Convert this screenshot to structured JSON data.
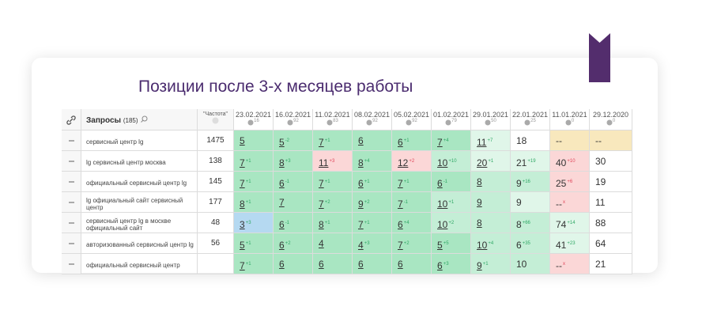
{
  "title": "Позиции после 3-х месяцев работы",
  "table": {
    "query_header": "Запросы",
    "query_count": "(185)",
    "freq_header": "\"Частота\"",
    "columns": [
      {
        "date": "23.02.2021",
        "n": "16"
      },
      {
        "date": "16.02.2021",
        "n": "92"
      },
      {
        "date": "11.02.2021",
        "n": "83"
      },
      {
        "date": "08.02.2021",
        "n": "92"
      },
      {
        "date": "05.02.2021",
        "n": "92"
      },
      {
        "date": "01.02.2021",
        "n": "79"
      },
      {
        "date": "29.01.2021",
        "n": "50"
      },
      {
        "date": "22.01.2021",
        "n": "25"
      },
      {
        "date": "11.01.2021",
        "n": "0"
      },
      {
        "date": "29.12.2020",
        "n": "0"
      }
    ],
    "rows": [
      {
        "query": "сервисный центр lg",
        "freq": "1475",
        "cells": [
          {
            "v": "5",
            "bg": "green"
          },
          {
            "v": "5",
            "d": "-2",
            "bg": "green"
          },
          {
            "v": "7",
            "d": "+1",
            "bg": "green"
          },
          {
            "v": "6",
            "bg": "green"
          },
          {
            "v": "6",
            "d": "+1",
            "bg": "green"
          },
          {
            "v": "7",
            "d": "+4",
            "bg": "green"
          },
          {
            "v": "11",
            "d": "+7",
            "bg": "light"
          },
          {
            "v": "18",
            "bg": "white"
          },
          {
            "v": "--",
            "bg": "yellow"
          },
          {
            "v": "--",
            "bg": "yellow"
          }
        ]
      },
      {
        "query": "lg сервисный центр москва",
        "freq": "138",
        "cells": [
          {
            "v": "7",
            "d": "+1",
            "bg": "green"
          },
          {
            "v": "8",
            "d": "+3",
            "bg": "green"
          },
          {
            "v": "11",
            "d": "+3",
            "bg": "pink"
          },
          {
            "v": "8",
            "d": "+4",
            "bg": "green"
          },
          {
            "v": "12",
            "d": "+2",
            "bg": "pink"
          },
          {
            "v": "10",
            "d": "+10",
            "bg": "mid"
          },
          {
            "v": "20",
            "d": "+1",
            "bg": "light"
          },
          {
            "v": "21",
            "d": "+19",
            "bg": "light"
          },
          {
            "v": "40",
            "d": "+10",
            "bg": "pink"
          },
          {
            "v": "30",
            "bg": "white"
          }
        ]
      },
      {
        "query": "официальный сервисный центр lg",
        "freq": "145",
        "cells": [
          {
            "v": "7",
            "d": "+1",
            "bg": "green"
          },
          {
            "v": "6",
            "d": "-1",
            "bg": "green"
          },
          {
            "v": "7",
            "d": "+1",
            "bg": "green"
          },
          {
            "v": "6",
            "d": "+1",
            "bg": "green"
          },
          {
            "v": "7",
            "d": "+1",
            "bg": "green"
          },
          {
            "v": "6",
            "d": "-1",
            "bg": "green"
          },
          {
            "v": "8",
            "bg": "mid"
          },
          {
            "v": "9",
            "d": "+16",
            "bg": "mid"
          },
          {
            "v": "25",
            "d": "+6",
            "bg": "pink"
          },
          {
            "v": "19",
            "bg": "white"
          }
        ]
      },
      {
        "query": "lg официальный сайт сервисный центр",
        "freq": "177",
        "cells": [
          {
            "v": "8",
            "d": "+1",
            "bg": "green"
          },
          {
            "v": "7",
            "bg": "green"
          },
          {
            "v": "7",
            "d": "+2",
            "bg": "green"
          },
          {
            "v": "9",
            "d": "+2",
            "bg": "green"
          },
          {
            "v": "7",
            "d": "-1",
            "bg": "green"
          },
          {
            "v": "10",
            "d": "+1",
            "bg": "mid"
          },
          {
            "v": "9",
            "bg": "mid"
          },
          {
            "v": "9",
            "bg": "light"
          },
          {
            "v": "--",
            "d": "x",
            "bg": "pink"
          },
          {
            "v": "11",
            "bg": "white"
          }
        ]
      },
      {
        "query": "сервисный центр lg в москве официальный сайт",
        "freq": "48",
        "cells": [
          {
            "v": "3",
            "d": "+3",
            "bg": "blue"
          },
          {
            "v": "6",
            "d": "-1",
            "bg": "green"
          },
          {
            "v": "8",
            "d": "+1",
            "bg": "green"
          },
          {
            "v": "7",
            "d": "+1",
            "bg": "green"
          },
          {
            "v": "6",
            "d": "+4",
            "bg": "green"
          },
          {
            "v": "10",
            "d": "+2",
            "bg": "mid"
          },
          {
            "v": "8",
            "bg": "mid"
          },
          {
            "v": "8",
            "d": "+66",
            "bg": "mid"
          },
          {
            "v": "74",
            "d": "+14",
            "bg": "light"
          },
          {
            "v": "88",
            "bg": "white"
          }
        ]
      },
      {
        "query": "авторизованный сервисный центр lg",
        "freq": "56",
        "cells": [
          {
            "v": "5",
            "d": "+1",
            "bg": "green"
          },
          {
            "v": "6",
            "d": "+2",
            "bg": "green"
          },
          {
            "v": "4",
            "bg": "green"
          },
          {
            "v": "4",
            "d": "+3",
            "bg": "green"
          },
          {
            "v": "7",
            "d": "+2",
            "bg": "green"
          },
          {
            "v": "5",
            "d": "+5",
            "bg": "green"
          },
          {
            "v": "10",
            "d": "+4",
            "bg": "mid"
          },
          {
            "v": "6",
            "d": "+35",
            "bg": "mid"
          },
          {
            "v": "41",
            "d": "+23",
            "bg": "light"
          },
          {
            "v": "64",
            "bg": "white"
          }
        ]
      },
      {
        "query": "официальный сервисный центр",
        "freq": "",
        "cells": [
          {
            "v": "7",
            "d": "+1",
            "bg": "green"
          },
          {
            "v": "6",
            "bg": "green"
          },
          {
            "v": "6",
            "bg": "green"
          },
          {
            "v": "6",
            "bg": "green"
          },
          {
            "v": "6",
            "bg": "green"
          },
          {
            "v": "6",
            "d": "+3",
            "bg": "green"
          },
          {
            "v": "9",
            "d": "+1",
            "bg": "mid"
          },
          {
            "v": "10",
            "bg": "mid"
          },
          {
            "v": "--",
            "d": "x",
            "bg": "pink"
          },
          {
            "v": "21",
            "bg": "white"
          }
        ]
      }
    ]
  }
}
